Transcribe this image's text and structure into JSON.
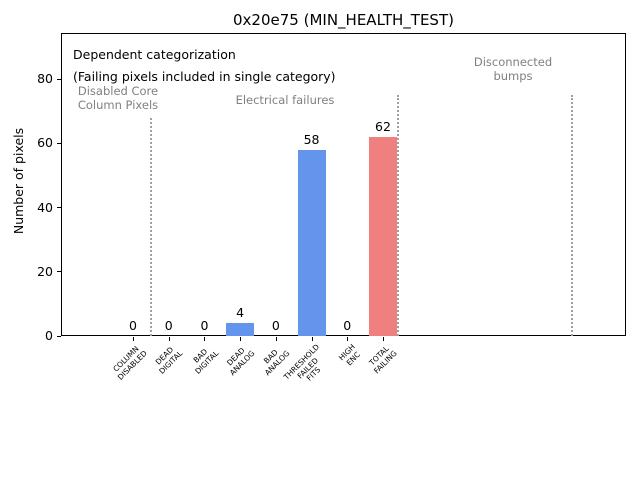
{
  "chart_data": {
    "type": "bar",
    "title": "0x20e75 (MIN_HEALTH_TEST)",
    "ylabel": "Number of pixels",
    "xlabel": "",
    "categories": [
      "COLUMN\nDISABLED",
      "DEAD\nDIGITAL",
      "BAD\nDIGITAL",
      "DEAD\nANALOG",
      "BAD\nANALOG",
      "THRESHOLD\nFAILED\nFITS",
      "HIGH\nENC",
      "TOTAL\nFAILING"
    ],
    "values": [
      0,
      0,
      0,
      4,
      0,
      58,
      0,
      62
    ],
    "bar_colors": [
      "#6495ed",
      "#6495ed",
      "#6495ed",
      "#6495ed",
      "#6495ed",
      "#6495ed",
      "#6495ed",
      "#f08080"
    ],
    "yticks": [
      0,
      20,
      40,
      60,
      80
    ],
    "ylim": [
      0,
      94
    ],
    "grid": false,
    "legend": null,
    "annotations": {
      "line1": "Dependent categorization",
      "line2": "(Failing pixels included in single category)"
    },
    "section_labels": [
      {
        "text": "Disabled Core\nColumn Pixels"
      },
      {
        "text": "Electrical failures"
      },
      {
        "text": "Disconnected\nbumps"
      }
    ],
    "colors": {
      "bar_blue": "#6495ed",
      "bar_red": "#f08080",
      "section_text": "#808080",
      "divider": "#a0a0a0",
      "axis": "#000000"
    }
  }
}
